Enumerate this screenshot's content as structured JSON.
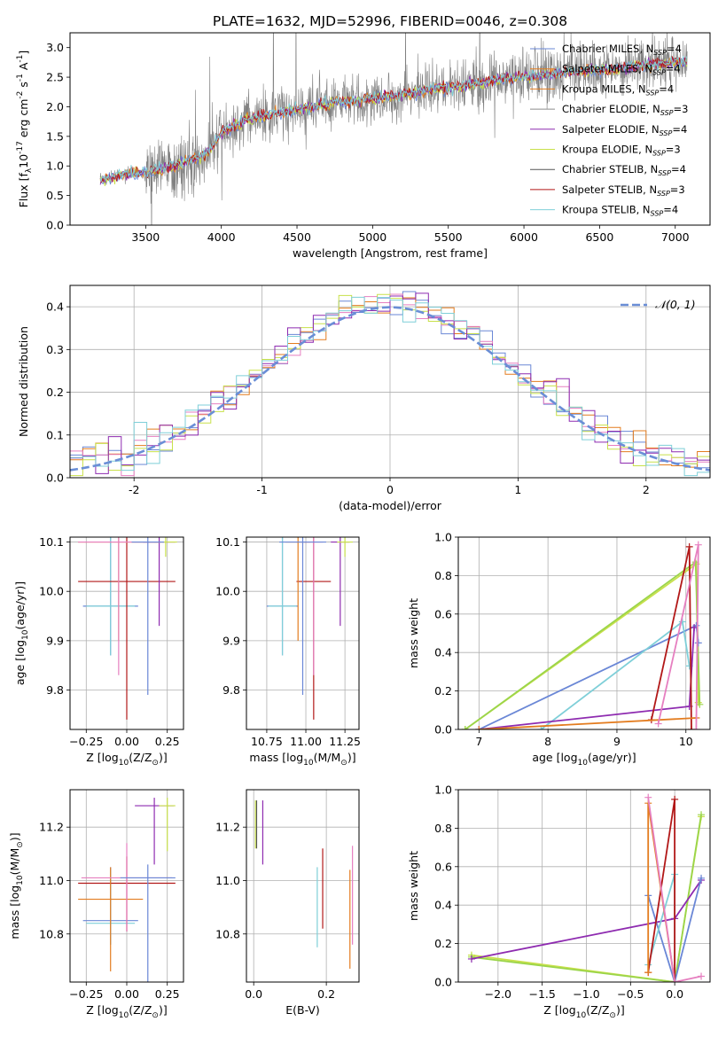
{
  "figure_title": "PLATE=1632, MJD=52996, FIBERID=0046, z=0.308",
  "colors": {
    "chabrier_miles": "#6a87d6",
    "salpeter_miles": "#e37c1f",
    "kroupa_miles": "#e37c1f",
    "chabrier_elodie": "#8c8c8c",
    "salpeter_elodie": "#8e2bb0",
    "kroupa_elodie": "#c8e04a",
    "chabrier_stelib": "#555555",
    "salpeter_stelib": "#b21818",
    "kroupa_stelib": "#7fcfd8",
    "extra_pink": "#e67fc0",
    "extra_green": "#9bd54a",
    "normal_curve": "#6a8ed6"
  },
  "chart_data": [
    {
      "type": "line",
      "panel": "spectrum",
      "xlabel": "wavelength [Angstrom, rest frame]",
      "ylabel": "Flux [f$_\\lambda$10$^{-17}$ erg cm$^{-2}$ s$^{-1}$ A$^{-1}$]",
      "xlim": [
        3000,
        7230
      ],
      "ylim": [
        0,
        3.25
      ],
      "xticks": [
        3500,
        4000,
        4500,
        5000,
        5500,
        6000,
        6500,
        7000
      ],
      "yticks": [
        0.0,
        0.5,
        1.0,
        1.5,
        2.0,
        2.5,
        3.0
      ],
      "grid": false,
      "legend_position": "top-right",
      "legend": [
        {
          "label": "Chabrier MILES, N",
          "sub": "SSP",
          "tail": "=4",
          "color_key": "chabrier_miles"
        },
        {
          "label": "Salpeter MILES, N",
          "sub": "SSP",
          "tail": "=4",
          "color_key": "salpeter_miles"
        },
        {
          "label": "Kroupa MILES, N",
          "sub": "SSP",
          "tail": "=4",
          "color_key": "kroupa_miles"
        },
        {
          "label": "Chabrier ELODIE, N",
          "sub": "SSP",
          "tail": "=3",
          "color_key": "chabrier_elodie"
        },
        {
          "label": "Salpeter ELODIE, N",
          "sub": "SSP",
          "tail": "=4",
          "color_key": "salpeter_elodie"
        },
        {
          "label": "Kroupa ELODIE, N",
          "sub": "SSP",
          "tail": "=3",
          "color_key": "kroupa_elodie"
        },
        {
          "label": "Chabrier STELIB, N",
          "sub": "SSP",
          "tail": "=4",
          "color_key": "chabrier_stelib"
        },
        {
          "label": "Salpeter STELIB, N",
          "sub": "SSP",
          "tail": "=3",
          "color_key": "salpeter_stelib"
        },
        {
          "label": "Kroupa STELIB, N",
          "sub": "SSP",
          "tail": "=4",
          "color_key": "kroupa_stelib"
        }
      ],
      "continuum_trend": {
        "x": [
          3200,
          3300,
          3400,
          3500,
          3600,
          3700,
          3800,
          3900,
          4000,
          4100,
          4200,
          4300,
          4400,
          4500,
          4600,
          4700,
          4800,
          4900,
          5000,
          5200,
          5400,
          5600,
          5800,
          6000,
          6200,
          6400,
          6600,
          6800,
          7000,
          7100
        ],
        "y": [
          0.75,
          0.82,
          0.88,
          0.88,
          0.95,
          1.0,
          1.1,
          1.2,
          1.55,
          1.7,
          1.8,
          1.85,
          1.9,
          1.95,
          2.0,
          2.05,
          2.1,
          2.1,
          2.15,
          2.2,
          2.3,
          2.35,
          2.45,
          2.5,
          2.55,
          2.6,
          2.65,
          2.7,
          2.75,
          2.75
        ]
      },
      "data_x_range": [
        3200,
        7080
      ]
    },
    {
      "type": "line",
      "panel": "residual-histogram",
      "xlabel": "(data-model)/error",
      "ylabel": "Normed distribution",
      "xlim": [
        -2.5,
        2.5
      ],
      "ylim": [
        0,
        0.45
      ],
      "xticks": [
        -2,
        -1,
        0,
        1,
        2
      ],
      "yticks": [
        0.0,
        0.1,
        0.2,
        0.3,
        0.4
      ],
      "grid": true,
      "legend_position": "top-right",
      "legend": [
        {
          "label": "𝒩(0, 1)",
          "color_key": "normal_curve",
          "style": "dashed"
        }
      ],
      "bin_width": 0.1,
      "series_colors": [
        "chabrier_miles",
        "salpeter_miles",
        "extra_pink",
        "kroupa_elodie",
        "salpeter_elodie",
        "kroupa_stelib"
      ],
      "normal_curve": {
        "mu": 0,
        "sigma": 1
      }
    },
    {
      "type": "scatter",
      "panel": "age-vs-Z",
      "xlabel": "Z [log$_{10}$(Z/Z$_\\odot$)]",
      "ylabel": "age  [log$_{10}$(age/yr)]",
      "xlim": [
        -0.35,
        0.35
      ],
      "ylim": [
        9.72,
        10.11
      ],
      "xticks": [
        -0.25,
        0.0,
        0.25
      ],
      "xticklabels": [
        "−0.25",
        "0.00",
        "0.25"
      ],
      "yticks": [
        9.8,
        9.9,
        10.0,
        10.1
      ],
      "grid": true,
      "errorbars": [
        {
          "x": -0.1,
          "y": 9.97,
          "xerr": 0.17,
          "yerr": [
            0.1,
            0.14
          ],
          "color_key": "chabrier_miles"
        },
        {
          "x": -0.1,
          "y": 9.97,
          "xerr": 0.15,
          "yerr": [
            0.1,
            0.14
          ],
          "color_key": "kroupa_stelib"
        },
        {
          "x": 0.0,
          "y": 10.02,
          "xerr": 0.3,
          "yerr": [
            0.28,
            0.1
          ],
          "color_key": "salpeter_stelib"
        },
        {
          "x": 0.2,
          "y": 10.1,
          "xerr": 0.1,
          "yerr": [
            0.17,
            0.02
          ],
          "color_key": "salpeter_elodie"
        },
        {
          "x": 0.24,
          "y": 10.1,
          "xerr": 0.07,
          "yerr": [
            0.03,
            0.02
          ],
          "color_key": "kroupa_elodie"
        },
        {
          "x": -0.05,
          "y": 10.1,
          "xerr": 0.25,
          "yerr": [
            0.2,
            0.01
          ],
          "color_key": "salpeter_miles"
        },
        {
          "x": -0.05,
          "y": 10.1,
          "xerr": 0.25,
          "yerr": [
            0.27,
            0.01
          ],
          "color_key": "extra_pink"
        },
        {
          "x": 0.13,
          "y": 10.1,
          "xerr": 0.1,
          "yerr": [
            0.31,
            0.01
          ],
          "color_key": "chabrier_miles"
        }
      ]
    },
    {
      "type": "scatter",
      "panel": "age-vs-mass",
      "xlabel": "mass [log$_{10}$(M/M$_\\odot$)]",
      "ylabel": "",
      "xlim": [
        10.62,
        11.34
      ],
      "ylim": [
        9.72,
        10.11
      ],
      "xticks": [
        10.75,
        11.0,
        11.25
      ],
      "xticklabels": [
        "10.75",
        "11.00",
        "11.25"
      ],
      "yticks": [
        9.8,
        9.9,
        10.0,
        10.1
      ],
      "grid": true,
      "errorbars": [
        {
          "x": 10.85,
          "y": 9.97,
          "xerr": 0.1,
          "yerr": [
            0.1,
            0.14
          ],
          "color_key": "chabrier_miles"
        },
        {
          "x": 10.85,
          "y": 9.97,
          "xerr": 0.09,
          "yerr": [
            0.1,
            0.14
          ],
          "color_key": "kroupa_stelib"
        },
        {
          "x": 11.05,
          "y": 10.02,
          "xerr": 0.11,
          "yerr": [
            0.28,
            0.1
          ],
          "color_key": "salpeter_stelib"
        },
        {
          "x": 11.22,
          "y": 10.1,
          "xerr": 0.06,
          "yerr": [
            0.17,
            0.02
          ],
          "color_key": "salpeter_elodie"
        },
        {
          "x": 11.25,
          "y": 10.1,
          "xerr": 0.05,
          "yerr": [
            0.03,
            0.02
          ],
          "color_key": "kroupa_elodie"
        },
        {
          "x": 10.95,
          "y": 10.1,
          "xerr": 0.08,
          "yerr": [
            0.2,
            0.01
          ],
          "color_key": "salpeter_miles"
        },
        {
          "x": 11.05,
          "y": 10.1,
          "xerr": 0.06,
          "yerr": [
            0.27,
            0.01
          ],
          "color_key": "extra_pink"
        },
        {
          "x": 10.98,
          "y": 10.1,
          "xerr": 0.15,
          "yerr": [
            0.31,
            0.01
          ],
          "color_key": "chabrier_miles"
        }
      ]
    },
    {
      "type": "line",
      "panel": "mass-weight-vs-age",
      "xlabel": "age  [log$_{10}$(age/yr)]",
      "ylabel": "mass weight",
      "xlim": [
        6.7,
        10.35
      ],
      "ylim": [
        0,
        1
      ],
      "xticks": [
        7,
        8,
        9,
        10
      ],
      "yticks": [
        0.0,
        0.2,
        0.4,
        0.6,
        0.8,
        1.0
      ],
      "grid": true,
      "series": [
        {
          "color_key": "kroupa_elodie",
          "x": [
            6.8,
            10.15,
            10.18
          ],
          "y": [
            0.0,
            0.86,
            0.14
          ]
        },
        {
          "color_key": "extra_green",
          "x": [
            6.8,
            10.14,
            10.2
          ],
          "y": [
            0.0,
            0.87,
            0.13
          ]
        },
        {
          "color_key": "chabrier_miles",
          "x": [
            7.0,
            10.15,
            10.18
          ],
          "y": [
            0.0,
            0.54,
            0.45
          ]
        },
        {
          "color_key": "kroupa_stelib",
          "x": [
            7.9,
            9.95,
            10.05
          ],
          "y": [
            0.0,
            0.56,
            0.33
          ]
        },
        {
          "color_key": "salpeter_elodie",
          "x": [
            7.0,
            10.05,
            10.12
          ],
          "y": [
            0.0,
            0.12,
            0.53
          ]
        },
        {
          "color_key": "salpeter_stelib",
          "x": [
            9.5,
            10.05,
            10.08
          ],
          "y": [
            0.05,
            0.95,
            0.0
          ]
        },
        {
          "color_key": "salpeter_miles",
          "x": [
            7.0,
            10.15
          ],
          "y": [
            0.0,
            0.06
          ]
        },
        {
          "color_key": "extra_pink",
          "x": [
            9.6,
            10.18,
            10.15
          ],
          "y": [
            0.03,
            0.96,
            0.0
          ]
        }
      ]
    },
    {
      "type": "scatter",
      "panel": "mass-vs-Z",
      "xlabel": "Z [log$_{10}$(Z/Z$_\\odot$)]",
      "ylabel": "mass [log$_{10}$(M/M$_\\odot$)]",
      "xlim": [
        -0.35,
        0.35
      ],
      "ylim": [
        10.62,
        11.34
      ],
      "xticks": [
        -0.25,
        0.0,
        0.25
      ],
      "xticklabels": [
        "−0.25",
        "0.00",
        "0.25"
      ],
      "yticks": [
        10.8,
        11.0,
        11.2
      ],
      "grid": true,
      "errorbars": [
        {
          "x": -0.1,
          "y": 10.85,
          "xerr": 0.17,
          "yerr": [
            0.09,
            0.2
          ],
          "color_key": "chabrier_miles"
        },
        {
          "x": -0.1,
          "y": 10.84,
          "xerr": 0.15,
          "yerr": [
            0.08,
            0.2
          ],
          "color_key": "kroupa_stelib"
        },
        {
          "x": 0.0,
          "y": 10.99,
          "xerr": 0.3,
          "yerr": [
            0.18,
            0.1
          ],
          "color_key": "salpeter_stelib"
        },
        {
          "x": 0.17,
          "y": 11.28,
          "xerr": 0.12,
          "yerr": [
            0.22,
            0.03
          ],
          "color_key": "salpeter_elodie"
        },
        {
          "x": 0.25,
          "y": 11.28,
          "xerr": 0.05,
          "yerr": [
            0.17,
            0.03
          ],
          "color_key": "kroupa_elodie"
        },
        {
          "x": -0.1,
          "y": 10.93,
          "xerr": 0.2,
          "yerr": [
            0.27,
            0.12
          ],
          "color_key": "salpeter_miles"
        },
        {
          "x": 0.0,
          "y": 11.01,
          "xerr": 0.28,
          "yerr": [
            0.2,
            0.13
          ],
          "color_key": "extra_pink"
        },
        {
          "x": 0.13,
          "y": 11.01,
          "xerr": 0.17,
          "yerr": [
            0.43,
            0.05
          ],
          "color_key": "chabrier_miles"
        }
      ]
    },
    {
      "type": "scatter",
      "panel": "mass-vs-EBV",
      "xlabel": "E(B-V)",
      "ylabel": "",
      "xlim": [
        -0.02,
        0.29
      ],
      "ylim": [
        10.62,
        11.34
      ],
      "xticks": [
        0.0,
        0.2
      ],
      "xticklabels": [
        "0.0",
        "0.2"
      ],
      "yticks": [
        10.8,
        11.0,
        11.2
      ],
      "grid": true,
      "errorbars": [
        {
          "x": 0.005,
          "y": 11.2,
          "xerr": 0,
          "yerr": [
            0.08,
            0.1
          ],
          "color_key": "kroupa_elodie"
        },
        {
          "x": 0.008,
          "y": 11.2,
          "xerr": 0,
          "yerr": [
            0.08,
            0.1
          ],
          "color_key": "chabrier_stelib"
        },
        {
          "x": 0.025,
          "y": 11.2,
          "xerr": 0,
          "yerr": [
            0.14,
            0.1
          ],
          "color_key": "salpeter_elodie"
        },
        {
          "x": 0.175,
          "y": 10.9,
          "xerr": 0,
          "yerr": [
            0.15,
            0.15
          ],
          "color_key": "kroupa_stelib"
        },
        {
          "x": 0.19,
          "y": 10.97,
          "xerr": 0,
          "yerr": [
            0.15,
            0.15
          ],
          "color_key": "salpeter_stelib"
        },
        {
          "x": 0.265,
          "y": 10.86,
          "xerr": 0,
          "yerr": [
            0.19,
            0.18
          ],
          "color_key": "salpeter_miles"
        },
        {
          "x": 0.272,
          "y": 10.95,
          "xerr": 0,
          "yerr": [
            0.19,
            0.18
          ],
          "color_key": "extra_pink"
        }
      ]
    },
    {
      "type": "line",
      "panel": "mass-weight-vs-Z",
      "xlabel": "Z [log$_{10}$(Z/Z$_\\odot$)]",
      "ylabel": "mass weight",
      "xlim": [
        -2.45,
        0.4
      ],
      "ylim": [
        0,
        1
      ],
      "xticks": [
        -2.0,
        -1.5,
        -1.0,
        -0.5,
        0.0
      ],
      "xticklabels": [
        "−2.0",
        "−1.5",
        "−1.0",
        "−0.5",
        "0.0"
      ],
      "yticks": [
        0.0,
        0.2,
        0.4,
        0.6,
        0.8,
        1.0
      ],
      "grid": true,
      "series": [
        {
          "color_key": "kroupa_elodie",
          "x": [
            -2.3,
            0.0,
            0.3
          ],
          "y": [
            0.14,
            0.0,
            0.86
          ]
        },
        {
          "color_key": "extra_green",
          "x": [
            -2.3,
            0.0,
            0.3
          ],
          "y": [
            0.13,
            0.0,
            0.87
          ]
        },
        {
          "color_key": "salpeter_elodie",
          "x": [
            -2.3,
            0.0,
            0.3
          ],
          "y": [
            0.12,
            0.33,
            0.53
          ]
        },
        {
          "color_key": "chabrier_miles",
          "x": [
            -0.3,
            0.0,
            0.3
          ],
          "y": [
            0.45,
            0.0,
            0.54
          ]
        },
        {
          "color_key": "kroupa_stelib",
          "x": [
            -0.3,
            0.0,
            0.0
          ],
          "y": [
            0.09,
            0.56,
            0.0
          ]
        },
        {
          "color_key": "salpeter_stelib",
          "x": [
            -0.3,
            0.0,
            0.0
          ],
          "y": [
            0.05,
            0.95,
            0.0
          ]
        },
        {
          "color_key": "salpeter_miles",
          "x": [
            -0.3,
            -0.3,
            0.0
          ],
          "y": [
            0.05,
            0.93,
            0.0
          ]
        },
        {
          "color_key": "extra_pink",
          "x": [
            -0.3,
            0.0,
            0.3
          ],
          "y": [
            0.96,
            0.0,
            0.03
          ]
        }
      ]
    }
  ]
}
